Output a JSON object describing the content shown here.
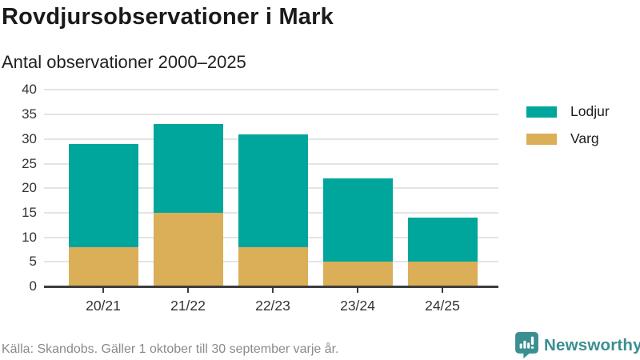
{
  "header": {
    "title": "Rovdjursobservationer i Mark",
    "subtitle": "Antal observationer 2000–2025"
  },
  "chart_data": {
    "type": "bar",
    "stacked": true,
    "categories": [
      "20/21",
      "21/22",
      "22/23",
      "23/24",
      "24/25"
    ],
    "series": [
      {
        "name": "Varg",
        "color": "#dbae58",
        "values": [
          8,
          15,
          8,
          5,
          5
        ]
      },
      {
        "name": "Lodjur",
        "color": "#00a69c",
        "values": [
          21,
          18,
          23,
          17,
          9
        ]
      }
    ],
    "totals": [
      29,
      33,
      31,
      22,
      14
    ],
    "ylim": [
      0,
      40
    ],
    "yticks": [
      0,
      5,
      10,
      15,
      20,
      25,
      30,
      35,
      40
    ],
    "grid": true,
    "legend_position": "right",
    "legend": [
      {
        "label": "Lodjur",
        "color": "#00a69c"
      },
      {
        "label": "Varg",
        "color": "#dbae58"
      }
    ]
  },
  "footer": {
    "source": "Källa: Skandobs. Gäller 1 oktober till 30 september varje år."
  },
  "branding": {
    "name": "Newsworthy",
    "logo_icon": "bar-chart-speech-bubble-icon",
    "color": "#3a8f90"
  }
}
